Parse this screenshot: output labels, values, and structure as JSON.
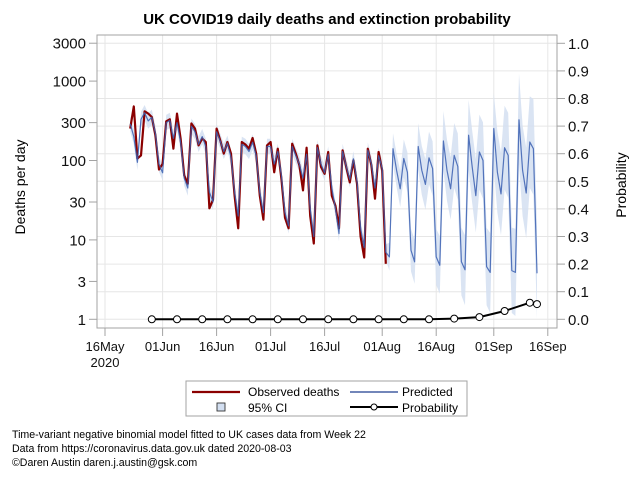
{
  "chart_data": {
    "type": "line",
    "title": "UK COVID19 daily deaths and extinction probability",
    "xlabel": "",
    "ylabel": "Deaths per day",
    "y2label": "Probability",
    "y_scale": "log",
    "ylim": [
      1,
      3000
    ],
    "y2lim": [
      0,
      1
    ],
    "xlim": [
      "2020-05-14",
      "2020-09-18"
    ],
    "grid": true,
    "y_ticks": [
      {
        "value": 1,
        "label": "1"
      },
      {
        "value": 3,
        "label": "3"
      },
      {
        "value": 10,
        "label": "10"
      },
      {
        "value": 30,
        "label": "30"
      },
      {
        "value": 100,
        "label": "100"
      },
      {
        "value": 300,
        "label": "300"
      },
      {
        "value": 1000,
        "label": "1000"
      },
      {
        "value": 3000,
        "label": "3000"
      }
    ],
    "y2_ticks": [
      {
        "value": 0.0,
        "label": "0.0"
      },
      {
        "value": 0.1,
        "label": "0.1"
      },
      {
        "value": 0.2,
        "label": "0.2"
      },
      {
        "value": 0.3,
        "label": "0.3"
      },
      {
        "value": 0.4,
        "label": "0.4"
      },
      {
        "value": 0.5,
        "label": "0.5"
      },
      {
        "value": 0.6,
        "label": "0.6"
      },
      {
        "value": 0.7,
        "label": "0.7"
      },
      {
        "value": 0.8,
        "label": "0.8"
      },
      {
        "value": 0.9,
        "label": "0.9"
      },
      {
        "value": 1.0,
        "label": "1.0"
      }
    ],
    "x_ticks": [
      {
        "date": "2020-05-16",
        "label": "16May",
        "sub": "2020"
      },
      {
        "date": "2020-06-01",
        "label": "01Jun"
      },
      {
        "date": "2020-06-16",
        "label": "16Jun"
      },
      {
        "date": "2020-07-01",
        "label": "01Jul"
      },
      {
        "date": "2020-07-16",
        "label": "16Jul"
      },
      {
        "date": "2020-08-01",
        "label": "01Aug"
      },
      {
        "date": "2020-08-16",
        "label": "16Aug"
      },
      {
        "date": "2020-09-01",
        "label": "01Sep"
      },
      {
        "date": "2020-09-16",
        "label": "16Sep"
      }
    ],
    "series": {
      "observed": {
        "name": "Observed deaths",
        "axis": "left",
        "color": "#8b0000",
        "x_start": "2020-05-23",
        "values": [
          252,
          480,
          106,
          116,
          417,
          390,
          353,
          208,
          77,
          91,
          312,
          330,
          141,
          390,
          189,
          65,
          51,
          292,
          252,
          155,
          189,
          171,
          25,
          32,
          252,
          180,
          122,
          171,
          122,
          36,
          14,
          171,
          159,
          141,
          192,
          122,
          36,
          18,
          155,
          171,
          71,
          141,
          59,
          19,
          14,
          163,
          122,
          87,
          42,
          145,
          20,
          9,
          155,
          83,
          68,
          128,
          36,
          27,
          14,
          134,
          83,
          53,
          100,
          51,
          11,
          6,
          141,
          87,
          33,
          128,
          75,
          5
        ]
      },
      "predicted": {
        "name": "Predicted",
        "axis": "left",
        "color": "#3a5fb0",
        "x_start": "2020-05-23",
        "values": [
          290,
          200,
          95,
          330,
          400,
          315,
          350,
          220,
          90,
          70,
          300,
          320,
          190,
          300,
          170,
          60,
          45,
          270,
          230,
          160,
          200,
          150,
          40,
          30,
          230,
          175,
          130,
          165,
          110,
          40,
          20,
          160,
          150,
          130,
          170,
          115,
          40,
          22,
          150,
          150,
          90,
          130,
          65,
          22,
          15,
          150,
          115,
          90,
          60,
          120,
          25,
          11,
          145,
          90,
          70,
          120,
          45,
          25,
          12,
          130,
          85,
          58,
          105,
          55,
          14,
          8,
          135,
          90,
          45,
          115,
          80,
          7,
          6.1,
          141,
          75,
          44,
          106,
          71,
          7.4,
          5.3,
          150,
          75,
          50,
          108,
          79,
          6.1,
          4.8,
          176,
          75,
          44,
          116,
          84,
          5.3,
          4.2,
          208,
          83,
          36,
          128,
          100,
          4.6,
          3.9,
          252,
          71,
          38,
          145,
          116,
          4.1,
          3.9,
          326,
          75,
          39,
          171,
          141,
          3.8
        ]
      },
      "ci95": {
        "name": "95% CI",
        "axis": "left",
        "color": "#d3dff1",
        "x_start": "2020-05-23",
        "lower": [
          232,
          160,
          76,
          264,
          320,
          252,
          280,
          176,
          72,
          56,
          240,
          256,
          152,
          240,
          136,
          48,
          36,
          216,
          184,
          128,
          160,
          120,
          32,
          24,
          184,
          140,
          104,
          132,
          88,
          32,
          16,
          128,
          120,
          104,
          136,
          92,
          32,
          17.6,
          120,
          120,
          72,
          104,
          52,
          17.6,
          12,
          120,
          92,
          72,
          48,
          96,
          20,
          8.8,
          116,
          72,
          56,
          96,
          36,
          20,
          9.6,
          104,
          68,
          46,
          84,
          44,
          11.2,
          6.4,
          108,
          72,
          36,
          92,
          64,
          5.6,
          4.1,
          90,
          46,
          26,
          61,
          40,
          4.0,
          2.8,
          76,
          37,
          24,
          50,
          36,
          2.7,
          2.1,
          74,
          31,
          18,
          45,
          32,
          2.0,
          1.5,
          75,
          29,
          12.4,
          43,
          33,
          1.5,
          1.2,
          79,
          22,
          11.5,
          43,
          34,
          1.2,
          1.1,
          90,
          20,
          10.5,
          45,
          37,
          1.0
        ],
        "upper": [
          363,
          250,
          119,
          413,
          500,
          394,
          438,
          275,
          113,
          88,
          375,
          400,
          238,
          375,
          213,
          75,
          56,
          338,
          288,
          200,
          250,
          188,
          50,
          38,
          288,
          219,
          163,
          206,
          138,
          50,
          25,
          200,
          188,
          163,
          213,
          144,
          50,
          27.5,
          188,
          188,
          113,
          163,
          81,
          27.5,
          18.8,
          188,
          144,
          113,
          75,
          150,
          31,
          13.8,
          181,
          113,
          88,
          150,
          56,
          31,
          15,
          163,
          106,
          73,
          131,
          69,
          17.5,
          10,
          169,
          113,
          56,
          144,
          100,
          8.8,
          9.2,
          220,
          121,
          74,
          184,
          127,
          13.7,
          10.1,
          295,
          152,
          104,
          231,
          174,
          13.8,
          11.1,
          419,
          183,
          110,
          296,
          219,
          14.2,
          11.5,
          580,
          237,
          104,
          379,
          302,
          14.2,
          12.2,
          700,
          231,
          126,
          489,
          398,
          14.3,
          13.8,
          1240,
          275,
          145,
          646,
          590,
          14.8
        ]
      },
      "probability": {
        "name": "Probability",
        "axis": "right",
        "color": "#000000",
        "x": [
          "2020-05-29",
          "2020-06-05",
          "2020-06-12",
          "2020-06-19",
          "2020-06-26",
          "2020-07-03",
          "2020-07-10",
          "2020-07-17",
          "2020-07-24",
          "2020-07-31",
          "2020-08-07",
          "2020-08-14",
          "2020-08-21",
          "2020-08-28",
          "2020-09-04",
          "2020-09-11",
          "2020-09-13"
        ],
        "values": [
          0,
          0,
          0,
          0,
          0,
          0,
          0,
          0,
          0,
          0,
          0,
          0,
          0.0025,
          0.008,
          0.03,
          0.06,
          0.055
        ]
      }
    },
    "legend": {
      "position": "bottom",
      "items": [
        {
          "label": "Observed deaths",
          "symbol": "line",
          "color": "#8b0000"
        },
        {
          "label": "Predicted",
          "symbol": "line",
          "color": "#1f3f8f"
        },
        {
          "label": "95% CI",
          "symbol": "square",
          "color": "#d3dff1"
        },
        {
          "label": "Probability",
          "symbol": "line-circle",
          "color": "#000000"
        }
      ]
    }
  },
  "footer": {
    "lines": [
      "Time-variant negative binomial model fitted to UK cases data from Week 22",
      "Data from https://coronavirus.data.gov.uk dated 2020-08-03",
      "©Daren Austin daren.j.austin@gsk.com"
    ]
  }
}
